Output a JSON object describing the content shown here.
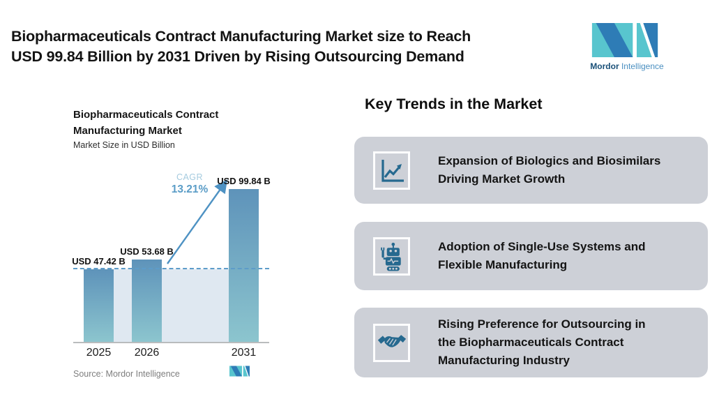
{
  "header": {
    "title_line1": "Biopharmaceuticals Contract Manufacturing Market size to Reach",
    "title_line2": "USD 99.84 Billion by 2031 Driven by Rising Outsourcing Demand"
  },
  "brand": {
    "word_primary": "Mordor",
    "word_secondary": "Intelligence",
    "teal": "#58c5ce",
    "blue": "#2e7cb6",
    "text_primary_color": "#1a5078",
    "text_secondary_color": "#4a8fc0"
  },
  "chart_data": {
    "type": "bar",
    "title_line1": "Biopharmaceuticals Contract",
    "title_line2": "Manufacturing Market",
    "subtitle": "Market Size in USD Billion",
    "categories": [
      "2025",
      "2026",
      "2031"
    ],
    "values": [
      47.42,
      53.68,
      99.84
    ],
    "value_labels": [
      "USD 47.42 B",
      "USD 53.68 B",
      "USD 99.84 B"
    ],
    "ylabel": "Market Size in USD Billion",
    "ylim": [
      0,
      105
    ],
    "grid": false,
    "cagr": {
      "label": "CAGR",
      "value": "13.21%",
      "from": "2026",
      "to": "2031"
    },
    "reference_line": "horizontal dashed line at 2025 value (47.42)",
    "bar_color_top": "#5e93ba",
    "bar_color_bottom": "#8cc5ce",
    "backdrop_color": "#dfe8f1",
    "arrow_color": "#4e92c3",
    "source": "Source: Mordor Intelligence"
  },
  "trends": {
    "heading": "Key Trends in the Market",
    "card_bg": "#cdd0d7",
    "icon_color": "#26698f",
    "cards": [
      {
        "icon": "line-chart-icon",
        "text": "Expansion of Biologics and Biosimilars\nDriving Market Growth"
      },
      {
        "icon": "robot-icon",
        "text": "Adoption of Single-Use Systems and\nFlexible Manufacturing"
      },
      {
        "icon": "handshake-icon",
        "text": "Rising Preference for Outsourcing in\nthe Biopharmaceuticals Contract\nManufacturing Industry"
      }
    ]
  }
}
